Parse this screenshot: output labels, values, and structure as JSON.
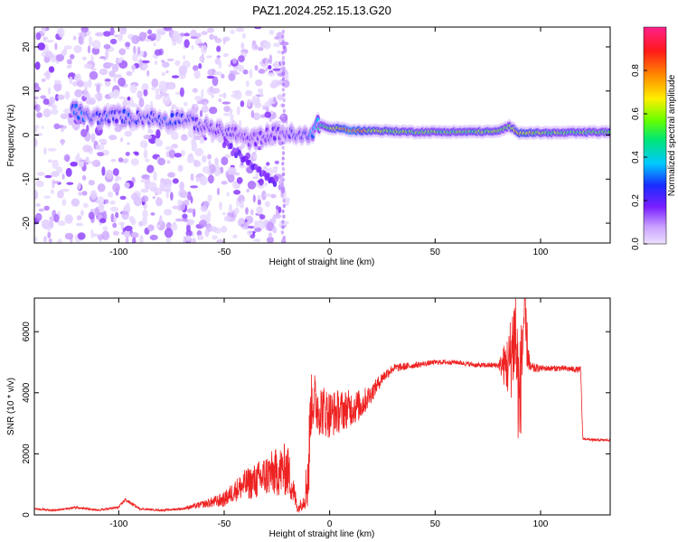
{
  "title": "PAZ1.2024.252.15.13.G20",
  "chart_data": [
    {
      "type": "heatmap",
      "xlabel": "Height of straight line (km)",
      "ylabel": "Frequency (Hz)",
      "xlim": [
        -140,
        133
      ],
      "ylim": [
        -24.5,
        24.5
      ],
      "xticks": [
        -100,
        -50,
        0,
        50,
        100
      ],
      "yticks": [
        -20,
        -10,
        0,
        10,
        20
      ],
      "colorbar": {
        "label": "Normalized spectral amplitude",
        "range": [
          0,
          1
        ],
        "ticks": [
          0.0,
          0.2,
          0.4,
          0.6,
          0.8
        ],
        "colors": [
          "#f0e8ff",
          "#c9a0ff",
          "#7a1fff",
          "#1a2cff",
          "#00c8ff",
          "#00e676",
          "#66ff00",
          "#ffee00",
          "#ff8800",
          "#ff1a1a",
          "#ff1f8a"
        ]
      },
      "ridge": {
        "x": [
          -122,
          -115,
          -110,
          -105,
          -100,
          -95,
          -90,
          -85,
          -80,
          -75,
          -70,
          -65,
          -60,
          -55,
          -50,
          -45,
          -40,
          -35,
          -30,
          -25,
          -20,
          -15,
          -10,
          -5,
          0,
          5,
          10,
          20,
          40,
          60,
          80,
          85,
          90,
          95,
          100,
          110,
          120,
          133
        ],
        "freq": [
          6,
          4,
          4,
          4,
          4.5,
          4,
          4,
          4,
          3.5,
          3.5,
          4,
          3,
          2,
          1.5,
          0.5,
          0.5,
          -1,
          -1,
          0,
          0.5,
          0.5,
          -0.5,
          0,
          2.5,
          1.5,
          1.5,
          1,
          1,
          0.7,
          0.7,
          0.8,
          2,
          0.5,
          0.5,
          0.5,
          0.5,
          0.6,
          0.7
        ],
        "amplitude": [
          0.35,
          0.3,
          0.28,
          0.3,
          0.25,
          0.3,
          0.25,
          0.25,
          0.28,
          0.3,
          0.25,
          0.25,
          0.22,
          0.22,
          0.22,
          0.2,
          0.18,
          0.18,
          0.2,
          0.2,
          0.22,
          0.25,
          0.3,
          0.45,
          0.6,
          0.75,
          0.85,
          0.65,
          0.55,
          0.55,
          0.6,
          0.5,
          0.75,
          0.7,
          0.6,
          0.55,
          0.55,
          0.55
        ]
      }
    },
    {
      "type": "line",
      "xlabel": "Height of straight line (km)",
      "ylabel": "SNR (10 * v/v)",
      "xlim": [
        -140,
        133
      ],
      "ylim": [
        0,
        7100
      ],
      "xticks": [
        -100,
        -50,
        0,
        50,
        100
      ],
      "yticks": [
        0,
        2000,
        4000,
        6000
      ],
      "color": "#ee2222",
      "x": [
        -140,
        -130,
        -120,
        -110,
        -100,
        -97,
        -90,
        -80,
        -70,
        -60,
        -50,
        -45,
        -40,
        -35,
        -30,
        -25,
        -20,
        -15,
        -12,
        -10,
        -9,
        -8,
        -5,
        0,
        5,
        10,
        15,
        20,
        25,
        30,
        40,
        50,
        60,
        70,
        80,
        85,
        88,
        90,
        92,
        95,
        100,
        110,
        119,
        120,
        125,
        133
      ],
      "y": [
        200,
        150,
        250,
        150,
        250,
        500,
        200,
        150,
        200,
        350,
        500,
        800,
        1000,
        1100,
        1300,
        1400,
        1500,
        200,
        500,
        1500,
        3500,
        3800,
        3500,
        3300,
        3400,
        3500,
        3600,
        4000,
        4500,
        4800,
        4900,
        5000,
        5000,
        4900,
        4900,
        4900,
        6000,
        3500,
        6500,
        4800,
        4800,
        4800,
        4750,
        2500,
        2450,
        2450
      ],
      "noise_amplitude": [
        30,
        30,
        40,
        30,
        40,
        60,
        30,
        30,
        40,
        120,
        250,
        350,
        500,
        600,
        700,
        800,
        900,
        150,
        300,
        1500,
        1000,
        1000,
        900,
        800,
        700,
        600,
        500,
        300,
        200,
        150,
        100,
        80,
        80,
        80,
        100,
        1200,
        2000,
        2000,
        1500,
        200,
        100,
        100,
        100,
        40,
        40,
        40
      ]
    }
  ]
}
